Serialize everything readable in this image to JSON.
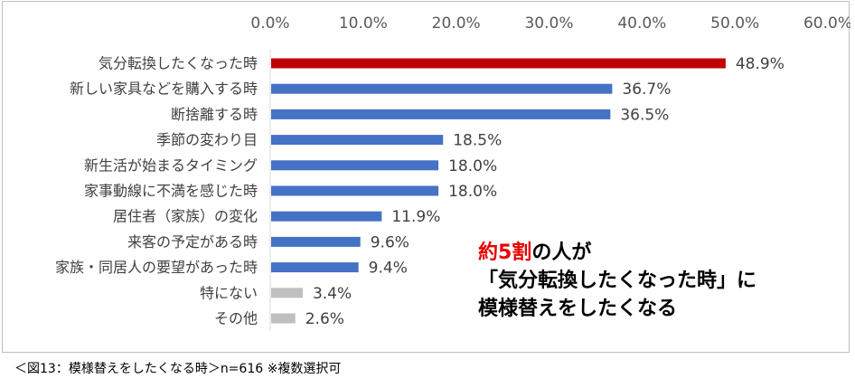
{
  "chart_data": {
    "type": "bar",
    "orientation": "horizontal",
    "categories": [
      "気分転換したくなった時",
      "新しい家具などを購入する時",
      "断捨離する時",
      "季節の変わり目",
      "新生活が始まるタイミング",
      "家事動線に不満を感じた時",
      "居住者（家族）の変化",
      "来客の予定がある時",
      "家族・同居人の要望があった時",
      "特にない",
      "その他"
    ],
    "values": [
      48.9,
      36.7,
      36.5,
      18.5,
      18.0,
      18.0,
      11.9,
      9.6,
      9.4,
      3.4,
      2.6
    ],
    "value_labels": [
      "48.9%",
      "36.7%",
      "36.5%",
      "18.5%",
      "18.0%",
      "18.0%",
      "11.9%",
      "9.6%",
      "9.4%",
      "3.4%",
      "2.6%"
    ],
    "bar_colors": [
      "#c00000",
      "#4472c4",
      "#4472c4",
      "#4472c4",
      "#4472c4",
      "#4472c4",
      "#4472c4",
      "#4472c4",
      "#4472c4",
      "#bfbfbf",
      "#bfbfbf"
    ],
    "xlim": [
      0,
      60
    ],
    "xticks": [
      "0.0%",
      "10.0%",
      "20.0%",
      "30.0%",
      "40.0%",
      "50.0%",
      "60.0%"
    ],
    "axis_position": "top",
    "grid": false,
    "title": "",
    "xlabel": "",
    "ylabel": ""
  },
  "callout": {
    "line1_red": "約5割",
    "line1_rest": "の人が",
    "line2": "「気分転換したくなった時」に",
    "line3": "模様替えをしたくなる"
  },
  "caption": "＜図13：模様替えをしたくなる時＞n=616 ※複数選択可"
}
